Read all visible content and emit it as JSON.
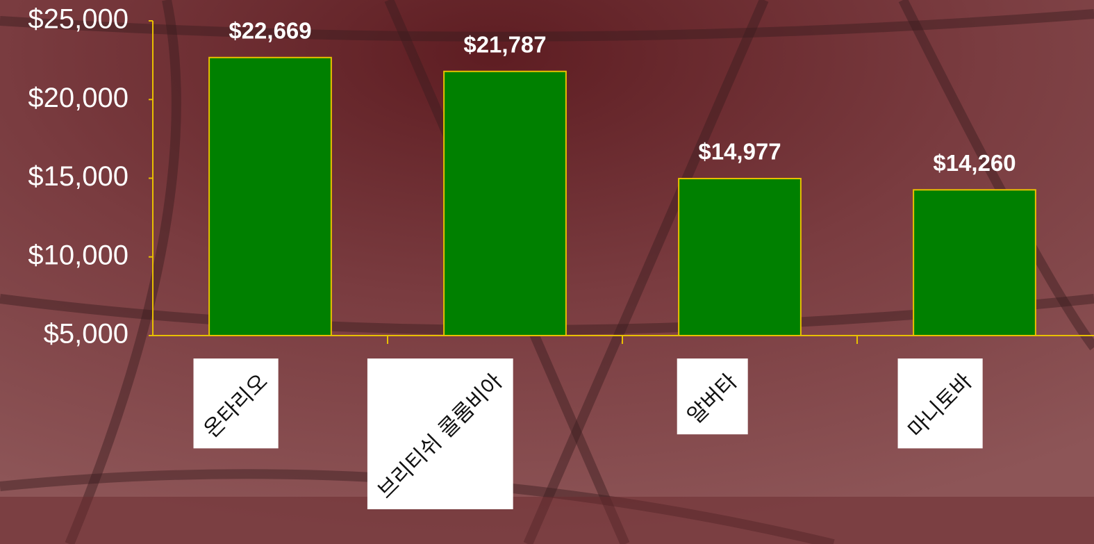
{
  "chart_data": {
    "type": "bar",
    "categories": [
      "온타리오",
      "브리티쉬 콜롬비아",
      "알버타",
      "마니토바"
    ],
    "values": [
      22669,
      21787,
      14977,
      14260
    ],
    "value_labels": [
      "$22,669",
      "$21,787",
      "$14,977",
      "$14,260"
    ],
    "color": "#008000",
    "ylim": [
      5000,
      25000
    ],
    "yticks": [
      {
        "value": 5000,
        "label": "$5,000"
      },
      {
        "value": 10000,
        "label": "$10,000"
      },
      {
        "value": 15000,
        "label": "$15,000"
      },
      {
        "value": 20000,
        "label": "$20,000"
      },
      {
        "value": 25000,
        "label": "$25,000"
      }
    ],
    "grid": false
  }
}
